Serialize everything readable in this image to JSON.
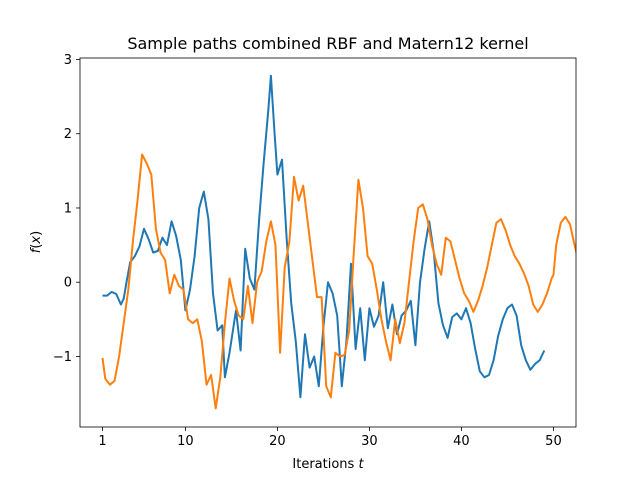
{
  "chart_data": {
    "type": "line",
    "title": "Sample paths combined RBF and Matern12 kernel",
    "xlabel_text": "Iterations ",
    "xlabel_var": "t",
    "ylabel_var_f": "f",
    "ylabel_rest": "(",
    "ylabel_var_x": "x",
    "ylabel_close": ")",
    "xlim": [
      -1.45,
      52.45
    ],
    "ylim": [
      -1.95,
      3.02
    ],
    "xticks": [
      1,
      10,
      20,
      30,
      40,
      50
    ],
    "yticks": [
      -1,
      0,
      1,
      2,
      3
    ],
    "grid": false,
    "series": [
      {
        "color": "#1f77b4",
        "points": [
          [
            1,
            -0.18
          ],
          [
            1.5,
            -0.18
          ],
          [
            2,
            -0.13
          ],
          [
            2.5,
            -0.16
          ],
          [
            3,
            -0.3
          ],
          [
            3.3,
            -0.22
          ],
          [
            3.6,
            0.0
          ],
          [
            4,
            0.27
          ],
          [
            4.5,
            0.35
          ],
          [
            5,
            0.48
          ],
          [
            5.5,
            0.72
          ],
          [
            6,
            0.58
          ],
          [
            6.5,
            0.4
          ],
          [
            7,
            0.42
          ],
          [
            7.5,
            0.6
          ],
          [
            8,
            0.5
          ],
          [
            8.5,
            0.82
          ],
          [
            9,
            0.62
          ],
          [
            9.5,
            0.3
          ],
          [
            10,
            -0.38
          ],
          [
            10.5,
            -0.1
          ],
          [
            11,
            0.35
          ],
          [
            11.5,
            1.0
          ],
          [
            12,
            1.22
          ],
          [
            12.5,
            0.85
          ],
          [
            13,
            -0.15
          ],
          [
            13.5,
            -0.65
          ],
          [
            14,
            -0.58
          ],
          [
            14.3,
            -1.28
          ],
          [
            14.8,
            -0.95
          ],
          [
            15.5,
            -0.38
          ],
          [
            16,
            -0.92
          ],
          [
            16.5,
            0.45
          ],
          [
            17,
            0.05
          ],
          [
            17.5,
            -0.1
          ],
          [
            18,
            0.82
          ],
          [
            18.5,
            1.6
          ],
          [
            19,
            2.3
          ],
          [
            19.3,
            2.78
          ],
          [
            19.7,
            2.0
          ],
          [
            20,
            1.45
          ],
          [
            20.5,
            1.65
          ],
          [
            21,
            0.6
          ],
          [
            21.5,
            -0.28
          ],
          [
            22,
            -0.8
          ],
          [
            22.5,
            -1.55
          ],
          [
            23,
            -0.7
          ],
          [
            23.5,
            -1.15
          ],
          [
            24,
            -1.0
          ],
          [
            24.5,
            -1.4
          ],
          [
            25,
            -0.6
          ],
          [
            25.5,
            0.0
          ],
          [
            26,
            -0.15
          ],
          [
            26.5,
            -0.45
          ],
          [
            27,
            -1.4
          ],
          [
            27.5,
            -0.8
          ],
          [
            28,
            0.25
          ],
          [
            28.5,
            -0.9
          ],
          [
            29,
            -0.35
          ],
          [
            29.5,
            -1.05
          ],
          [
            30,
            -0.35
          ],
          [
            30.5,
            -0.6
          ],
          [
            31,
            -0.45
          ],
          [
            31.5,
            0.0
          ],
          [
            32,
            -0.62
          ],
          [
            32.5,
            -0.3
          ],
          [
            33,
            -0.7
          ],
          [
            33.5,
            -0.45
          ],
          [
            34,
            -0.38
          ],
          [
            34.5,
            -0.25
          ],
          [
            35,
            -0.85
          ],
          [
            35.5,
            0.0
          ],
          [
            36,
            0.45
          ],
          [
            36.5,
            0.82
          ],
          [
            37,
            0.4
          ],
          [
            37.5,
            -0.28
          ],
          [
            38,
            -0.58
          ],
          [
            38.5,
            -0.75
          ],
          [
            39,
            -0.47
          ],
          [
            39.5,
            -0.42
          ],
          [
            40,
            -0.5
          ],
          [
            40.5,
            -0.35
          ],
          [
            41,
            -0.55
          ],
          [
            41.5,
            -0.9
          ],
          [
            42,
            -1.2
          ],
          [
            42.5,
            -1.28
          ],
          [
            43,
            -1.25
          ],
          [
            43.5,
            -1.05
          ],
          [
            44,
            -0.72
          ],
          [
            44.5,
            -0.5
          ],
          [
            45,
            -0.35
          ],
          [
            45.5,
            -0.3
          ],
          [
            46,
            -0.45
          ],
          [
            46.5,
            -0.85
          ],
          [
            47,
            -1.05
          ],
          [
            47.5,
            -1.18
          ],
          [
            48,
            -1.1
          ],
          [
            48.5,
            -1.05
          ],
          [
            49,
            -0.92
          ]
        ]
      },
      {
        "color": "#ff7f0e",
        "points": [
          [
            1,
            -1.02
          ],
          [
            1.3,
            -1.3
          ],
          [
            1.8,
            -1.38
          ],
          [
            2.3,
            -1.33
          ],
          [
            2.8,
            -1.0
          ],
          [
            3.3,
            -0.55
          ],
          [
            3.8,
            -0.1
          ],
          [
            4.3,
            0.55
          ],
          [
            4.8,
            1.1
          ],
          [
            5.3,
            1.72
          ],
          [
            5.8,
            1.6
          ],
          [
            6.3,
            1.45
          ],
          [
            6.8,
            0.72
          ],
          [
            7.3,
            0.4
          ],
          [
            7.8,
            0.3
          ],
          [
            8.3,
            -0.15
          ],
          [
            8.8,
            0.1
          ],
          [
            9.3,
            -0.05
          ],
          [
            9.8,
            -0.1
          ],
          [
            10.3,
            -0.5
          ],
          [
            10.8,
            -0.55
          ],
          [
            11.3,
            -0.5
          ],
          [
            11.8,
            -0.8
          ],
          [
            12.3,
            -1.38
          ],
          [
            12.8,
            -1.25
          ],
          [
            13.3,
            -1.7
          ],
          [
            13.8,
            -1.28
          ],
          [
            14.3,
            -0.55
          ],
          [
            14.8,
            0.05
          ],
          [
            15.3,
            -0.25
          ],
          [
            15.8,
            -0.45
          ],
          [
            16.3,
            -0.5
          ],
          [
            16.8,
            -0.05
          ],
          [
            17.3,
            -0.55
          ],
          [
            17.8,
            0.0
          ],
          [
            18.3,
            0.15
          ],
          [
            18.8,
            0.55
          ],
          [
            19.3,
            0.82
          ],
          [
            19.8,
            0.5
          ],
          [
            20.3,
            -0.95
          ],
          [
            20.8,
            0.2
          ],
          [
            21.3,
            0.55
          ],
          [
            21.8,
            1.42
          ],
          [
            22.3,
            1.1
          ],
          [
            22.8,
            1.3
          ],
          [
            23.3,
            0.8
          ],
          [
            23.8,
            0.3
          ],
          [
            24.3,
            -0.2
          ],
          [
            24.8,
            -0.2
          ],
          [
            25.3,
            -1.4
          ],
          [
            25.8,
            -1.55
          ],
          [
            26.3,
            -0.95
          ],
          [
            26.8,
            -1.0
          ],
          [
            27.3,
            -0.98
          ],
          [
            27.8,
            -0.65
          ],
          [
            28.3,
            0.4
          ],
          [
            28.8,
            1.38
          ],
          [
            29.3,
            1.0
          ],
          [
            29.8,
            0.35
          ],
          [
            30.3,
            0.25
          ],
          [
            30.8,
            -0.1
          ],
          [
            31.3,
            -0.5
          ],
          [
            31.8,
            -0.8
          ],
          [
            32.3,
            -1.05
          ],
          [
            32.8,
            -0.5
          ],
          [
            33.3,
            -0.82
          ],
          [
            33.8,
            -0.55
          ],
          [
            34.3,
            0.0
          ],
          [
            34.8,
            0.55
          ],
          [
            35.3,
            1.0
          ],
          [
            35.8,
            1.05
          ],
          [
            36.3,
            0.85
          ],
          [
            36.8,
            0.5
          ],
          [
            37.3,
            0.25
          ],
          [
            37.8,
            0.1
          ],
          [
            38.3,
            0.6
          ],
          [
            38.8,
            0.55
          ],
          [
            39.3,
            0.3
          ],
          [
            39.8,
            0.05
          ],
          [
            40.3,
            -0.15
          ],
          [
            40.8,
            -0.25
          ],
          [
            41.3,
            -0.4
          ],
          [
            41.8,
            -0.25
          ],
          [
            42.3,
            -0.05
          ],
          [
            42.8,
            0.2
          ],
          [
            43.3,
            0.5
          ],
          [
            43.8,
            0.8
          ],
          [
            44.3,
            0.85
          ],
          [
            44.8,
            0.7
          ],
          [
            45.3,
            0.5
          ],
          [
            45.8,
            0.35
          ],
          [
            46.3,
            0.25
          ],
          [
            46.8,
            0.12
          ],
          [
            47.3,
            -0.05
          ],
          [
            47.8,
            -0.3
          ],
          [
            48.3,
            -0.4
          ],
          [
            48.8,
            -0.3
          ],
          [
            49.3,
            -0.15
          ],
          [
            49.8,
            0.05
          ],
          [
            50,
            0.1
          ],
          [
            50.3,
            0.5
          ],
          [
            50.8,
            0.8
          ],
          [
            51.3,
            0.88
          ],
          [
            51.8,
            0.78
          ],
          [
            52.3,
            0.5
          ],
          [
            52.8,
            0.25
          ]
        ]
      }
    ]
  }
}
